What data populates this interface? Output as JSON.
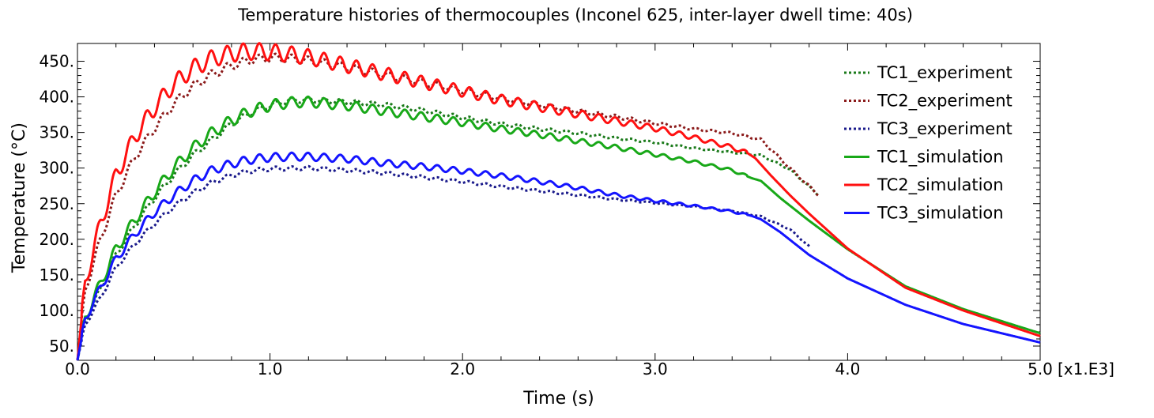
{
  "chart_data": {
    "type": "line",
    "title": "Temperature histories of thermocouples (Inconel 625, inter-layer dwell time: 40s)",
    "xlabel": "Time (s)",
    "ylabel": "Temperature (°C)",
    "x_scale_label": "[x1.E3]",
    "xlim": [
      0,
      5000
    ],
    "ylim": [
      30,
      475
    ],
    "x_ticks": [
      0,
      1000,
      2000,
      3000,
      4000,
      5000
    ],
    "x_tick_labels": [
      "0.0",
      "1.0",
      "2.0",
      "3.0",
      "4.0",
      "5.0"
    ],
    "y_ticks": [
      50,
      100,
      150,
      200,
      250,
      300,
      350,
      400,
      450
    ],
    "y_tick_labels": [
      "50.",
      "100.",
      "150.",
      "200.",
      "250.",
      "300.",
      "350.",
      "400.",
      "450."
    ],
    "grid": false,
    "legend_position": "top-right",
    "layer_period_s": 84,
    "series": [
      {
        "name": "TC1_experiment",
        "color": "#1a7a1a",
        "style": "dotted",
        "osc_amplitude": 4,
        "x": [
          0,
          40,
          120,
          200,
          300,
          400,
          500,
          600,
          700,
          800,
          900,
          1000,
          1100,
          1200,
          1400,
          1600,
          1800,
          2000,
          2200,
          2400,
          2600,
          2800,
          3000,
          3200,
          3400,
          3550,
          3700,
          3850
        ],
        "y": [
          30,
          85,
          130,
          178,
          220,
          258,
          290,
          318,
          340,
          362,
          378,
          388,
          395,
          396,
          393,
          389,
          381,
          371,
          362,
          355,
          349,
          342,
          336,
          328,
          322,
          318,
          298,
          262
        ]
      },
      {
        "name": "TC2_experiment",
        "color": "#8b1a1a",
        "style": "dotted",
        "osc_amplitude": 6,
        "x": [
          0,
          40,
          120,
          200,
          300,
          400,
          500,
          600,
          700,
          800,
          900,
          1000,
          1100,
          1200,
          1400,
          1600,
          1800,
          2000,
          2200,
          2400,
          2600,
          2800,
          3000,
          3200,
          3400,
          3550,
          3700,
          3850
        ],
        "y": [
          30,
          128,
          200,
          262,
          316,
          356,
          390,
          415,
          432,
          444,
          452,
          455,
          454,
          451,
          442,
          431,
          420,
          409,
          398,
          389,
          380,
          372,
          363,
          355,
          349,
          340,
          300,
          262
        ]
      },
      {
        "name": "TC3_experiment",
        "color": "#1a1a8b",
        "style": "dotted",
        "osc_amplitude": 3,
        "x": [
          0,
          40,
          120,
          200,
          300,
          400,
          500,
          600,
          700,
          800,
          900,
          1000,
          1200,
          1400,
          1600,
          1800,
          2000,
          2200,
          2400,
          2600,
          2800,
          3000,
          3200,
          3400,
          3550,
          3700,
          3800
        ],
        "y": [
          30,
          80,
          118,
          160,
          194,
          222,
          246,
          265,
          280,
          290,
          296,
          299,
          300,
          297,
          293,
          287,
          281,
          274,
          268,
          262,
          256,
          251,
          246,
          240,
          232,
          214,
          190
        ]
      },
      {
        "name": "TC1_simulation",
        "color": "#18a818",
        "style": "solid",
        "osc_amplitude": 8,
        "x": [
          0,
          40,
          120,
          200,
          300,
          400,
          500,
          600,
          700,
          800,
          900,
          1000,
          1100,
          1200,
          1400,
          1600,
          1800,
          2000,
          2200,
          2400,
          2600,
          2800,
          3000,
          3200,
          3400,
          3500,
          3550,
          3650,
          3800,
          4000,
          4300,
          4600,
          5000
        ],
        "y": [
          30,
          90,
          138,
          186,
          228,
          266,
          300,
          328,
          350,
          367,
          380,
          388,
          392,
          393,
          388,
          380,
          372,
          364,
          355,
          347,
          338,
          329,
          319,
          309,
          297,
          286,
          282,
          258,
          226,
          186,
          134,
          102,
          68
        ]
      },
      {
        "name": "TC2_simulation",
        "color": "#ff1010",
        "style": "solid",
        "osc_amplitude": 12,
        "x": [
          0,
          40,
          120,
          200,
          300,
          400,
          500,
          600,
          700,
          800,
          900,
          1000,
          1100,
          1200,
          1400,
          1600,
          1800,
          2000,
          2200,
          2400,
          2600,
          2800,
          3000,
          3200,
          3400,
          3480,
          3520,
          3600,
          3700,
          3800,
          4000,
          4300,
          4600,
          5000
        ],
        "y": [
          30,
          140,
          222,
          290,
          345,
          385,
          418,
          440,
          454,
          461,
          464,
          463,
          460,
          456,
          444,
          432,
          420,
          408,
          396,
          386,
          376,
          366,
          356,
          343,
          329,
          321,
          314,
          290,
          262,
          236,
          187,
          132,
          100,
          64
        ]
      },
      {
        "name": "TC3_simulation",
        "color": "#1414ff",
        "style": "solid",
        "osc_amplitude": 6,
        "x": [
          0,
          40,
          120,
          200,
          300,
          400,
          500,
          600,
          700,
          800,
          900,
          1000,
          1100,
          1200,
          1400,
          1600,
          1800,
          2000,
          2200,
          2400,
          2600,
          2800,
          3000,
          3200,
          3400,
          3500,
          3550,
          3650,
          3800,
          4000,
          4300,
          4600,
          5000
        ],
        "y": [
          30,
          88,
          132,
          172,
          208,
          238,
          262,
          282,
          297,
          306,
          312,
          315,
          316,
          316,
          313,
          307,
          302,
          296,
          289,
          281,
          272,
          262,
          254,
          247,
          239,
          233,
          228,
          210,
          178,
          145,
          108,
          81,
          55
        ]
      }
    ]
  }
}
